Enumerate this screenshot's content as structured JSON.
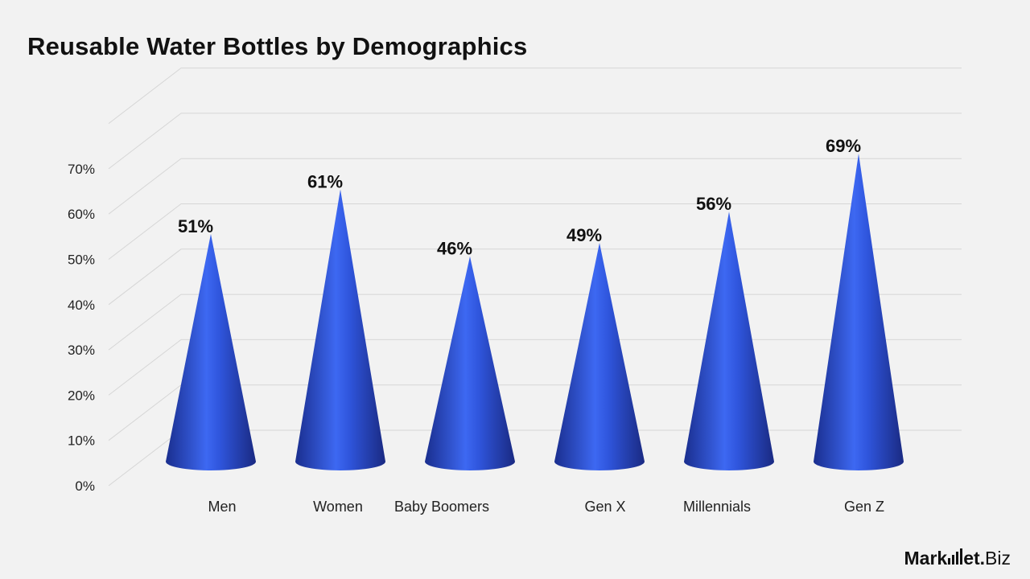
{
  "title": "Reusable Water Bottles by Demographics",
  "brand": {
    "part1": "Mark",
    "part2": "et",
    "dot": ".",
    "part3": "Biz"
  },
  "colors": {
    "cone_dark": "#1b2f8f",
    "cone_mid": "#2a4fd6",
    "cone_light": "#4f7bff",
    "grid": "#d6d6d6",
    "background": "#f2f2f2"
  },
  "chart_data": {
    "type": "bar",
    "bar_shape": "cone",
    "categories": [
      "Men",
      "Women",
      "Baby Boomers",
      "Gen X",
      "Millennials",
      "Gen Z"
    ],
    "values": [
      51,
      61,
      46,
      49,
      56,
      69
    ],
    "data_labels": [
      "51%",
      "61%",
      "46%",
      "49%",
      "56%",
      "69%"
    ],
    "yticks": [
      "0%",
      "10%",
      "20%",
      "30%",
      "40%",
      "50%",
      "60%",
      "70%"
    ],
    "ylim": [
      0,
      70
    ],
    "grid": true,
    "legend": "none"
  }
}
